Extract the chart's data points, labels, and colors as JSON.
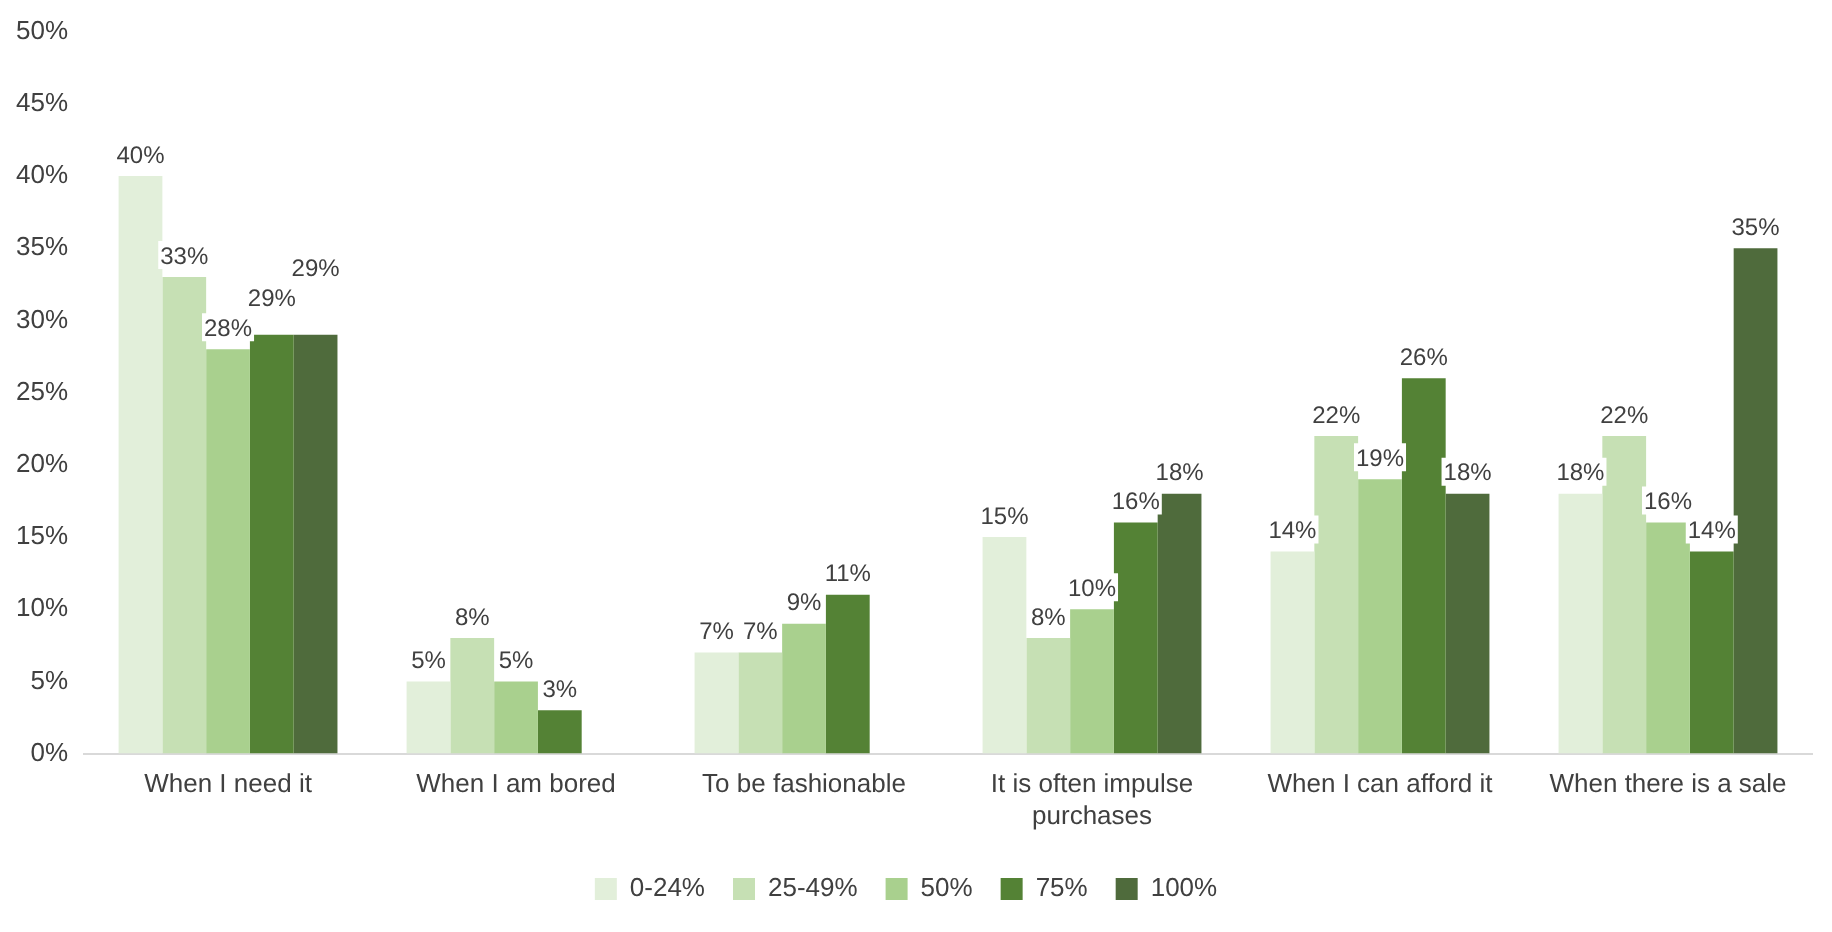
{
  "chart_data": {
    "type": "bar",
    "categories": [
      "When I need it",
      "When I am bored",
      "To be fashionable",
      "It is often impulse purchases",
      "When I can afford it",
      "When there is a sale"
    ],
    "series": [
      {
        "name": "0-24%",
        "color": "#e2efda",
        "values": [
          40,
          5,
          7,
          15,
          14,
          18
        ],
        "value_labels": [
          "40%",
          "5%",
          "7%",
          "15%",
          "14%",
          "18%"
        ]
      },
      {
        "name": "25-49%",
        "color": "#c6e0b4",
        "values": [
          33,
          8,
          7,
          8,
          22,
          22
        ],
        "value_labels": [
          "33%",
          "8%",
          "7%",
          "8%",
          "22%",
          "22%"
        ]
      },
      {
        "name": "50%",
        "color": "#a9d08e",
        "values": [
          28,
          5,
          9,
          10,
          19,
          16
        ],
        "value_labels": [
          "28%",
          "5%",
          "9%",
          "10%",
          "19%",
          "16%"
        ]
      },
      {
        "name": "75%",
        "color": "#548235",
        "values": [
          29,
          3,
          11,
          16,
          26,
          14
        ],
        "value_labels": [
          "29%",
          "3%",
          "11%",
          "16%",
          "26%",
          "14%"
        ]
      },
      {
        "name": "100%",
        "color": "#4f6b3c",
        "values": [
          29,
          null,
          null,
          18,
          18,
          35
        ],
        "value_labels": [
          "29%",
          null,
          null,
          "18%",
          "18%",
          "35%"
        ]
      }
    ],
    "ylim": [
      0,
      50
    ],
    "yticks": [
      {
        "value": 0,
        "label": "0%"
      },
      {
        "value": 5,
        "label": "5%"
      },
      {
        "value": 10,
        "label": "10%"
      },
      {
        "value": 15,
        "label": "15%"
      },
      {
        "value": 20,
        "label": "20%"
      },
      {
        "value": 25,
        "label": "25%"
      },
      {
        "value": 30,
        "label": "30%"
      },
      {
        "value": 35,
        "label": "35%"
      },
      {
        "value": 40,
        "label": "40%"
      },
      {
        "value": 45,
        "label": "45%"
      },
      {
        "value": 50,
        "label": "50%"
      }
    ],
    "grid": false,
    "legend": "bottom"
  }
}
